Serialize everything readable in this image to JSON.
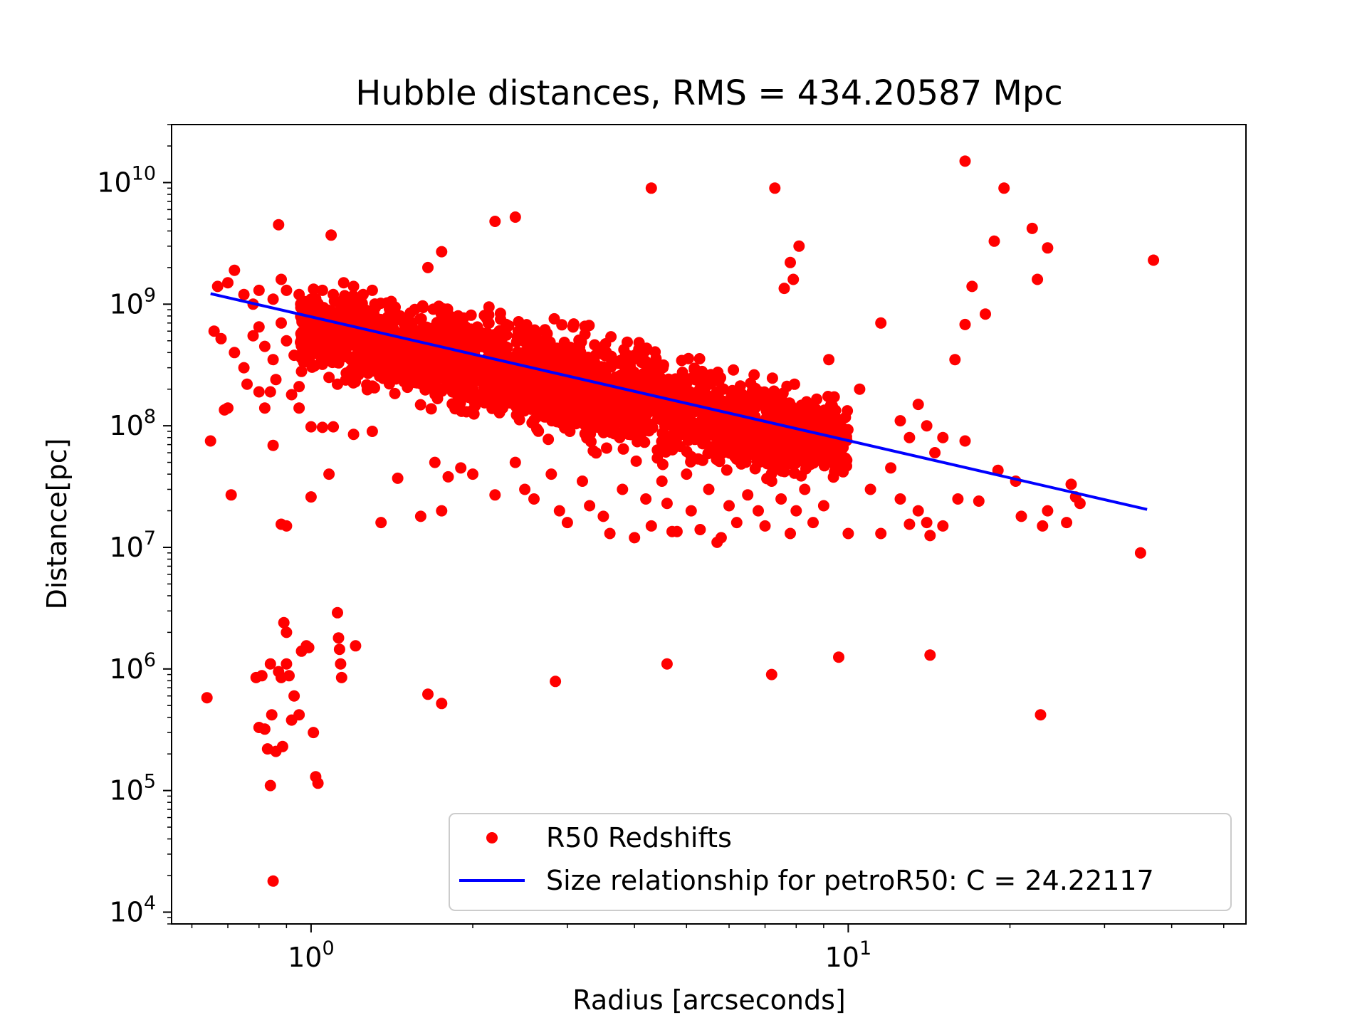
{
  "chart_data": {
    "type": "scatter",
    "title": "Hubble distances, RMS = 434.20587 Mpc",
    "xlabel": "Radius [arcseconds]",
    "ylabel": "Distance[pc]",
    "xscale": "log",
    "yscale": "log",
    "xlim": [
      0.55,
      55
    ],
    "ylim": [
      8000,
      30000000000
    ],
    "grid": false,
    "legend_position": "lower-right",
    "x_ticks": [
      {
        "value": 1,
        "base": "10",
        "exp": "0"
      },
      {
        "value": 10,
        "base": "10",
        "exp": "1"
      }
    ],
    "y_ticks": [
      {
        "value": 10000,
        "base": "10",
        "exp": "4"
      },
      {
        "value": 100000,
        "base": "10",
        "exp": "5"
      },
      {
        "value": 1000000,
        "base": "10",
        "exp": "6"
      },
      {
        "value": 10000000,
        "base": "10",
        "exp": "7"
      },
      {
        "value": 100000000,
        "base": "10",
        "exp": "8"
      },
      {
        "value": 1000000000,
        "base": "10",
        "exp": "9"
      },
      {
        "value": 10000000000,
        "base": "10",
        "exp": "10"
      }
    ],
    "series": [
      {
        "name": "R50 Redshifts",
        "kind": "scatter",
        "color": "#ff0000",
        "points": [
          [
            0.67,
            1400000000.0
          ],
          [
            0.7,
            1500000000.0
          ],
          [
            0.72,
            1900000000.0
          ],
          [
            0.75,
            1200000000.0
          ],
          [
            0.78,
            1000000000.0
          ],
          [
            0.8,
            1300000000.0
          ],
          [
            0.85,
            1100000000.0
          ],
          [
            0.88,
            1600000000.0
          ],
          [
            0.9,
            1300000000.0
          ],
          [
            0.95,
            1200000000.0
          ],
          [
            1.0,
            1100000000.0
          ],
          [
            1.05,
            1300000000.0
          ],
          [
            1.1,
            1200000000.0
          ],
          [
            1.15,
            1500000000.0
          ],
          [
            1.2,
            1400000000.0
          ],
          [
            1.25,
            1200000000.0
          ],
          [
            1.3,
            1300000000.0
          ],
          [
            0.66,
            600000000.0
          ],
          [
            0.68,
            520000000.0
          ],
          [
            0.72,
            400000000.0
          ],
          [
            0.75,
            300000000.0
          ],
          [
            0.78,
            550000000.0
          ],
          [
            0.8,
            650000000.0
          ],
          [
            0.82,
            450000000.0
          ],
          [
            0.85,
            350000000.0
          ],
          [
            0.88,
            700000000.0
          ],
          [
            0.9,
            500000000.0
          ],
          [
            0.93,
            380000000.0
          ],
          [
            0.96,
            280000000.0
          ],
          [
            0.98,
            600000000.0
          ],
          [
            1.02,
            400000000.0
          ],
          [
            1.05,
            320000000.0
          ],
          [
            1.08,
            250000000.0
          ],
          [
            1.12,
            220000000.0
          ],
          [
            0.76,
            220000000.0
          ],
          [
            0.8,
            190000000.0
          ],
          [
            0.86,
            240000000.0
          ],
          [
            0.92,
            180000000.0
          ],
          [
            0.95,
            210000000.0
          ],
          [
            0.65,
            75000000.0
          ],
          [
            0.69,
            135000000.0
          ],
          [
            0.7,
            140000000.0
          ],
          [
            0.71,
            27000000.0
          ],
          [
            0.82,
            140000000.0
          ],
          [
            0.84,
            190000000.0
          ],
          [
            0.85,
            69000000.0
          ],
          [
            0.88,
            15500000.0
          ],
          [
            0.9,
            15000000.0
          ],
          [
            0.95,
            140000000.0
          ],
          [
            1.0,
            98000000.0
          ],
          [
            1.0,
            26000000.0
          ],
          [
            1.05,
            97000000.0
          ],
          [
            1.08,
            40000000.0
          ],
          [
            1.1,
            98000000.0
          ],
          [
            1.2,
            85000000.0
          ],
          [
            1.3,
            90000000.0
          ],
          [
            0.87,
            4500000000.0
          ],
          [
            1.09,
            3700000000.0
          ],
          [
            1.65,
            2000000000.0
          ],
          [
            1.75,
            2700000000.0
          ],
          [
            2.2,
            4800000000.0
          ],
          [
            2.4,
            5200000000.0
          ],
          [
            4.3,
            9000000000.0
          ],
          [
            7.3,
            9000000000.0
          ],
          [
            7.6,
            1350000000.0
          ],
          [
            7.8,
            2200000000.0
          ],
          [
            7.9,
            1600000000.0
          ],
          [
            8.1,
            3000000000.0
          ],
          [
            16.5,
            15000000000.0
          ],
          [
            19.5,
            9000000000.0
          ],
          [
            18.7,
            3300000000.0
          ],
          [
            22.0,
            4200000000.0
          ],
          [
            22.5,
            1600000000.0
          ],
          [
            23.5,
            2900000000.0
          ],
          [
            17.0,
            1400000000.0
          ],
          [
            18.0,
            830000000.0
          ],
          [
            16.5,
            680000000.0
          ],
          [
            15.8,
            350000000.0
          ],
          [
            37.0,
            2300000000.0
          ],
          [
            35.0,
            9000000.0
          ],
          [
            11.5,
            700000000.0
          ],
          [
            9.2,
            350000000.0
          ],
          [
            10.5,
            200000000.0
          ],
          [
            12.5,
            110000000.0
          ],
          [
            13.0,
            80000000.0
          ],
          [
            14.0,
            100000000.0
          ],
          [
            15.0,
            80000000.0
          ],
          [
            16.5,
            75000000.0
          ],
          [
            13.5,
            150000000.0
          ],
          [
            14.5,
            60000000.0
          ],
          [
            12.0,
            45000000.0
          ],
          [
            11.0,
            30000000.0
          ],
          [
            12.5,
            25000000.0
          ],
          [
            13.5,
            20000000.0
          ],
          [
            14.0,
            16000000.0
          ],
          [
            16.0,
            25000000.0
          ],
          [
            17.5,
            24000000.0
          ],
          [
            19.0,
            43000000.0
          ],
          [
            20.5,
            35000000.0
          ],
          [
            21.0,
            18000000.0
          ],
          [
            23.0,
            15000000.0
          ],
          [
            23.5,
            20000000.0
          ],
          [
            26.0,
            33000000.0
          ],
          [
            26.5,
            26000000.0
          ],
          [
            27.0,
            23000000.0
          ],
          [
            25.5,
            16000000.0
          ],
          [
            11.5,
            13000000.0
          ],
          [
            10.0,
            13000000.0
          ],
          [
            15.0,
            15000000.0
          ],
          [
            13.0,
            15500000.0
          ],
          [
            14.2,
            12500000.0
          ],
          [
            1.35,
            16000000.0
          ],
          [
            1.45,
            37000000.0
          ],
          [
            1.6,
            18000000.0
          ],
          [
            1.7,
            50000000.0
          ],
          [
            1.75,
            20000000.0
          ],
          [
            1.8,
            38000000.0
          ],
          [
            1.9,
            45000000.0
          ],
          [
            2.0,
            40000000.0
          ],
          [
            2.2,
            27000000.0
          ],
          [
            2.4,
            50000000.0
          ],
          [
            2.5,
            30000000.0
          ],
          [
            2.6,
            25000000.0
          ],
          [
            2.8,
            40000000.0
          ],
          [
            2.9,
            20000000.0
          ],
          [
            3.0,
            16000000.0
          ],
          [
            3.2,
            35000000.0
          ],
          [
            3.3,
            22000000.0
          ],
          [
            3.5,
            18000000.0
          ],
          [
            3.6,
            13000000.0
          ],
          [
            3.8,
            30000000.0
          ],
          [
            4.0,
            12000000.0
          ],
          [
            4.2,
            25000000.0
          ],
          [
            4.3,
            15000000.0
          ],
          [
            4.5,
            35000000.0
          ],
          [
            4.6,
            23000000.0
          ],
          [
            4.8,
            13500000.0
          ],
          [
            5.0,
            40000000.0
          ],
          [
            5.1,
            20000000.0
          ],
          [
            5.3,
            14000000.0
          ],
          [
            5.5,
            30000000.0
          ],
          [
            5.8,
            12000000.0
          ],
          [
            6.0,
            22000000.0
          ],
          [
            6.2,
            16000000.0
          ],
          [
            6.5,
            27000000.0
          ],
          [
            6.8,
            20000000.0
          ],
          [
            7.0,
            15000000.0
          ],
          [
            7.2,
            35000000.0
          ],
          [
            7.5,
            25000000.0
          ],
          [
            7.8,
            13000000.0
          ],
          [
            8.0,
            20000000.0
          ],
          [
            8.3,
            30000000.0
          ],
          [
            8.6,
            16000000.0
          ],
          [
            9.0,
            22000000.0
          ],
          [
            9.5,
            45000000.0
          ],
          [
            5.7,
            11000000.0
          ],
          [
            4.7,
            13500000.0
          ],
          [
            0.64,
            580000.0
          ],
          [
            0.79,
            850000.0
          ],
          [
            0.8,
            330000.0
          ],
          [
            0.81,
            880000.0
          ],
          [
            0.82,
            320000.0
          ],
          [
            0.83,
            220000.0
          ],
          [
            0.84,
            1100000.0
          ],
          [
            0.84,
            110000.0
          ],
          [
            0.845,
            420000.0
          ],
          [
            0.85,
            18000.0
          ],
          [
            0.86,
            210000.0
          ],
          [
            0.87,
            950000.0
          ],
          [
            0.88,
            850000.0
          ],
          [
            0.885,
            230000.0
          ],
          [
            0.89,
            2400000.0
          ],
          [
            0.9,
            2000000.0
          ],
          [
            0.9,
            1100000.0
          ],
          [
            0.91,
            880000.0
          ],
          [
            0.92,
            380000.0
          ],
          [
            0.93,
            600000.0
          ],
          [
            0.95,
            420000.0
          ],
          [
            0.96,
            1400000.0
          ],
          [
            0.98,
            1550000.0
          ],
          [
            0.99,
            1500000.0
          ],
          [
            1.01,
            300000.0
          ],
          [
            1.02,
            130000.0
          ],
          [
            1.03,
            115000.0
          ],
          [
            1.12,
            2900000.0
          ],
          [
            1.125,
            1800000.0
          ],
          [
            1.13,
            1450000.0
          ],
          [
            1.135,
            1100000.0
          ],
          [
            1.14,
            850000.0
          ],
          [
            1.21,
            1550000.0
          ],
          [
            1.65,
            620000.0
          ],
          [
            1.75,
            520000.0
          ],
          [
            2.85,
            790000.0
          ],
          [
            4.6,
            1100000.0
          ],
          [
            7.2,
            900000.0
          ],
          [
            9.6,
            1250000.0
          ],
          [
            14.2,
            1300000.0
          ],
          [
            22.8,
            420000.0
          ]
        ]
      },
      {
        "name": "Size relationship for petroR50: C = 24.22117",
        "kind": "line",
        "color": "#0000ff",
        "x": [
          0.65,
          36.0
        ],
        "y": [
          1220000000.0,
          20500000.0
        ]
      }
    ]
  }
}
